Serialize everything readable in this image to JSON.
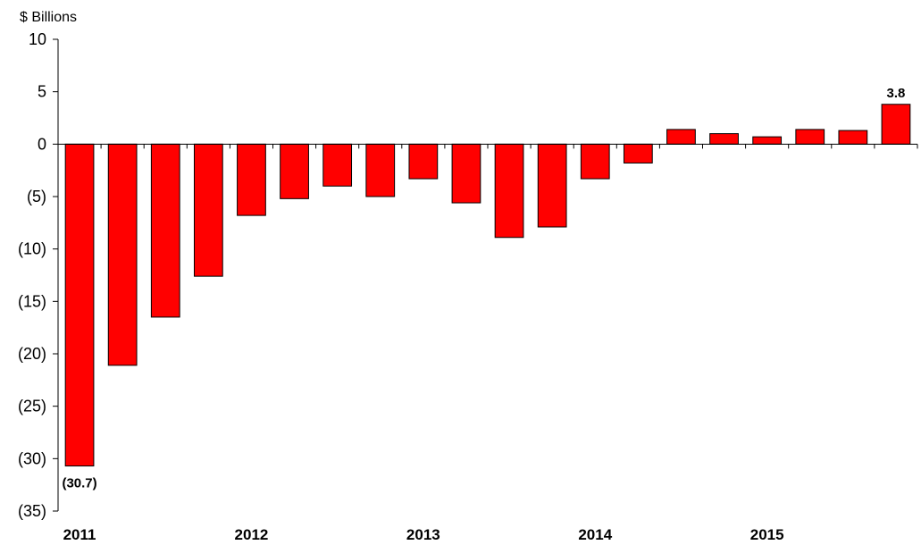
{
  "chart_data": {
    "type": "bar",
    "title": "",
    "ylabel": "$ Billions",
    "xlabel": "",
    "ylim": [
      -35,
      10
    ],
    "yticks": [
      10,
      5,
      0,
      -5,
      -10,
      -15,
      -20,
      -25,
      -30,
      -35
    ],
    "ytick_labels": [
      "10",
      "5",
      "0",
      "(5)",
      "(10)",
      "(15)",
      "(20)",
      "(25)",
      "(30)",
      "(35)"
    ],
    "x_labels": [
      {
        "label": "2011",
        "index": 0
      },
      {
        "label": "2012",
        "index": 4
      },
      {
        "label": "2013",
        "index": 8
      },
      {
        "label": "2014",
        "index": 12
      },
      {
        "label": "2015",
        "index": 16
      }
    ],
    "values": [
      -30.7,
      -21.1,
      -16.5,
      -12.6,
      -6.8,
      -5.2,
      -4.0,
      -5.0,
      -3.3,
      -5.6,
      -8.9,
      -7.9,
      -3.3,
      -1.8,
      1.4,
      1.0,
      0.7,
      1.4,
      1.3,
      3.8
    ],
    "data_labels": [
      {
        "index": 0,
        "text": "(30.7)",
        "placement": "below"
      },
      {
        "index": 19,
        "text": "3.8",
        "placement": "above"
      }
    ],
    "bar_color": "#ff0000",
    "grid": false,
    "legend": "none"
  }
}
